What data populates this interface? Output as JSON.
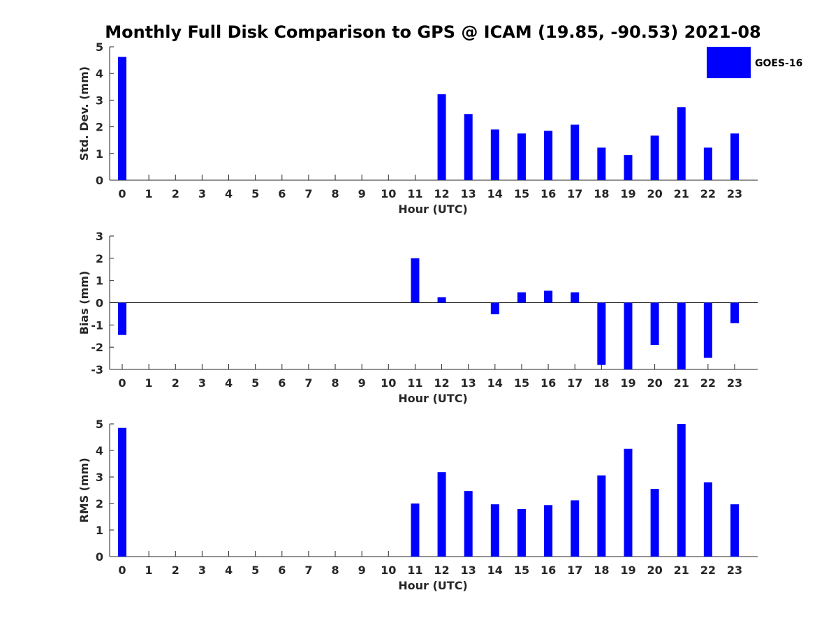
{
  "figure": {
    "title": "Monthly Full Disk Comparison to GPS @ ICAM (19.85, -90.53) 2021-08"
  },
  "legend": {
    "label": "GOES-16",
    "color": "#0000ff"
  },
  "chart_data": [
    {
      "type": "bar",
      "name": "std-dev",
      "xlabel": "Hour (UTC)",
      "ylabel": "Std. Dev. (mm)",
      "ylim": [
        0,
        5
      ],
      "yticks": [
        0,
        1,
        2,
        3,
        4,
        5
      ],
      "categories": [
        "0",
        "1",
        "2",
        "3",
        "4",
        "5",
        "6",
        "7",
        "8",
        "9",
        "10",
        "11",
        "12",
        "13",
        "14",
        "15",
        "16",
        "17",
        "18",
        "19",
        "20",
        "21",
        "22",
        "23"
      ],
      "series": [
        {
          "name": "GOES-16",
          "color": "#0000ff",
          "values": [
            4.62,
            null,
            null,
            null,
            null,
            null,
            null,
            null,
            null,
            null,
            null,
            null,
            3.22,
            2.48,
            1.9,
            1.75,
            1.85,
            2.08,
            1.22,
            0.94,
            1.67,
            2.74,
            1.22,
            1.75
          ]
        }
      ]
    },
    {
      "type": "bar",
      "name": "bias",
      "xlabel": "Hour (UTC)",
      "ylabel": "Bias (mm)",
      "ylim": [
        -3,
        3
      ],
      "yticks": [
        -3,
        -2,
        -1,
        0,
        1,
        2,
        3
      ],
      "zero_line": true,
      "categories": [
        "0",
        "1",
        "2",
        "3",
        "4",
        "5",
        "6",
        "7",
        "8",
        "9",
        "10",
        "11",
        "12",
        "13",
        "14",
        "15",
        "16",
        "17",
        "18",
        "19",
        "20",
        "21",
        "22",
        "23"
      ],
      "series": [
        {
          "name": "GOES-16",
          "color": "#0000ff",
          "values": [
            -1.45,
            null,
            null,
            null,
            null,
            null,
            null,
            null,
            null,
            null,
            null,
            2.0,
            0.25,
            0.0,
            -0.52,
            0.47,
            0.54,
            0.47,
            -2.8,
            -3.0,
            -1.9,
            -3.0,
            -2.48,
            -0.92
          ]
        }
      ]
    },
    {
      "type": "bar",
      "name": "rms",
      "xlabel": "Hour (UTC)",
      "ylabel": "RMS (mm)",
      "ylim": [
        0,
        5
      ],
      "yticks": [
        0,
        1,
        2,
        3,
        4,
        5
      ],
      "categories": [
        "0",
        "1",
        "2",
        "3",
        "4",
        "5",
        "6",
        "7",
        "8",
        "9",
        "10",
        "11",
        "12",
        "13",
        "14",
        "15",
        "16",
        "17",
        "18",
        "19",
        "20",
        "21",
        "22",
        "23"
      ],
      "series": [
        {
          "name": "GOES-16",
          "color": "#0000ff",
          "values": [
            4.85,
            null,
            null,
            null,
            null,
            null,
            null,
            null,
            null,
            null,
            null,
            2.0,
            3.18,
            2.47,
            1.97,
            1.79,
            1.94,
            2.12,
            3.06,
            4.06,
            2.55,
            5.0,
            2.8,
            1.97
          ]
        }
      ]
    }
  ]
}
